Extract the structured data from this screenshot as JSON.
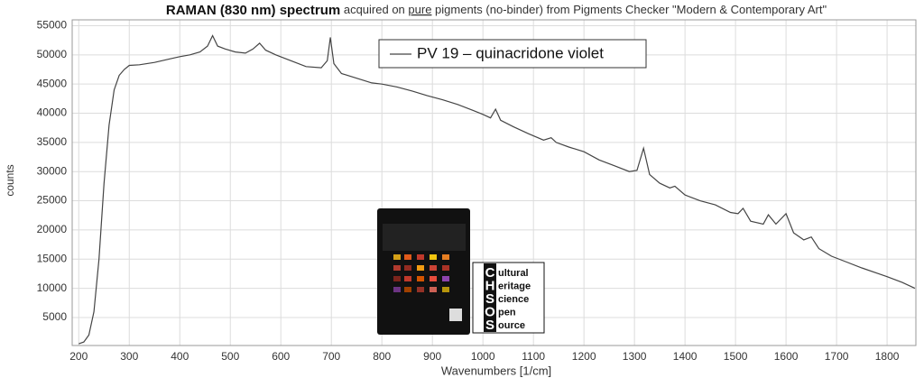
{
  "chart_data": {
    "type": "line",
    "title": {
      "bold": "RAMAN (830 nm) spectrum",
      "pre": " acquired on ",
      "underlined": "pure",
      "post": " pigments (no-binder) from Pigments Checker \"Modern & Contemporary Art\""
    },
    "x_label": "Wavenumbers [1/cm]",
    "y_label": "counts",
    "x": [
      200,
      210,
      220,
      230,
      240,
      250,
      260,
      270,
      280,
      290,
      300,
      320,
      350,
      380,
      400,
      420,
      440,
      455,
      465,
      475,
      490,
      510,
      530,
      545,
      558,
      570,
      590,
      620,
      650,
      680,
      692,
      698,
      705,
      720,
      750,
      780,
      800,
      830,
      860,
      890,
      920,
      950,
      980,
      1000,
      1015,
      1025,
      1035,
      1060,
      1090,
      1120,
      1135,
      1145,
      1170,
      1200,
      1230,
      1260,
      1290,
      1305,
      1318,
      1330,
      1350,
      1370,
      1380,
      1400,
      1430,
      1460,
      1490,
      1505,
      1515,
      1530,
      1555,
      1565,
      1580,
      1600,
      1615,
      1635,
      1650,
      1665,
      1690,
      1720,
      1750,
      1780,
      1800,
      1830,
      1855
    ],
    "series": [
      {
        "name": "PV 19 – quinacridone violet",
        "color": "#444444",
        "values": [
          500,
          800,
          2000,
          6000,
          15000,
          28000,
          38000,
          44000,
          46500,
          47500,
          48200,
          48300,
          48700,
          49300,
          49700,
          50000,
          50500,
          51500,
          53300,
          51500,
          51000,
          50500,
          50300,
          51000,
          52000,
          50800,
          50000,
          49000,
          48000,
          47800,
          49000,
          53000,
          48500,
          46800,
          46000,
          45200,
          45000,
          44500,
          43800,
          43000,
          42300,
          41500,
          40500,
          39800,
          39200,
          40700,
          38800,
          37700,
          36500,
          35400,
          35800,
          35000,
          34200,
          33400,
          32000,
          31000,
          30000,
          30200,
          34000,
          29500,
          28000,
          27200,
          27500,
          26000,
          25000,
          24300,
          23000,
          22800,
          23700,
          21500,
          21000,
          22600,
          21000,
          22800,
          19500,
          18300,
          18800,
          16800,
          15500,
          14500,
          13500,
          12600,
          12000,
          11000,
          10000
        ]
      }
    ],
    "xlim": [
      187,
      1857
    ],
    "ylim": [
      200,
      56000
    ],
    "xticks": [
      200,
      300,
      400,
      500,
      600,
      700,
      800,
      900,
      1000,
      1100,
      1200,
      1300,
      1400,
      1500,
      1600,
      1700,
      1800
    ],
    "yticks": [
      5000,
      10000,
      15000,
      20000,
      25000,
      30000,
      35000,
      40000,
      45000,
      50000,
      55000
    ],
    "grid": true,
    "logo": {
      "letters": [
        "C",
        "H",
        "S",
        "O",
        "S"
      ],
      "words": [
        "ultural",
        "eritage",
        "cience",
        "pen",
        "ource"
      ]
    }
  }
}
